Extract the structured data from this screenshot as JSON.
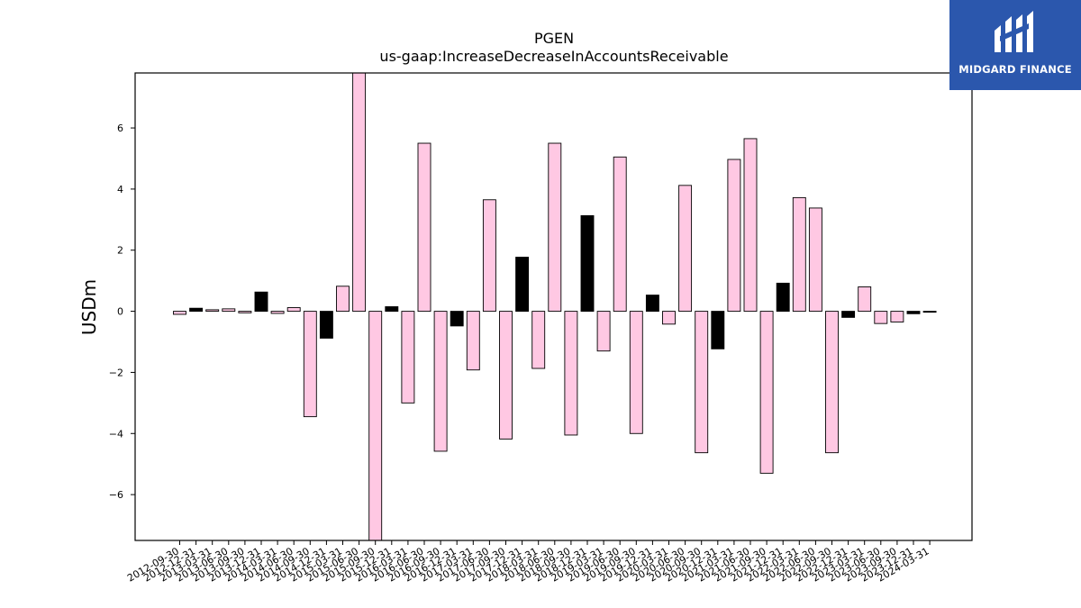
{
  "logo": {
    "brand": "MIDGARD FINANCE",
    "icon": "midgard-logo-icon",
    "background": "#2b57ad"
  },
  "chart_data": {
    "type": "bar",
    "title": "PGEN",
    "subtitle": "us-gaap:IncreaseDecreaseInAccountsReceivable",
    "ylabel": "USDm",
    "xlabel": "",
    "ylim": [
      -7.5,
      7.8
    ],
    "yticks": [
      -6,
      -4,
      -2,
      0,
      2,
      4,
      6
    ],
    "ytick_labels": [
      "−6",
      "−4",
      "−2",
      "0",
      "2",
      "4",
      "6"
    ],
    "grid": false,
    "colors": {
      "pink": "#ffc8e3",
      "black": "#000000",
      "edge": "#000000"
    },
    "categories": [
      "2012-09-30",
      "2012-12-31",
      "2013-03-31",
      "2013-06-30",
      "2013-09-30",
      "2013-12-31",
      "2014-03-31",
      "2014-06-30",
      "2014-09-30",
      "2014-12-31",
      "2015-03-31",
      "2015-06-30",
      "2015-09-30",
      "2015-12-31",
      "2016-03-31",
      "2016-06-30",
      "2016-09-30",
      "2016-12-31",
      "2017-03-31",
      "2017-06-30",
      "2017-09-30",
      "2017-12-31",
      "2018-03-31",
      "2018-06-30",
      "2018-09-30",
      "2018-12-31",
      "2019-03-31",
      "2019-06-30",
      "2019-09-30",
      "2019-12-31",
      "2020-03-31",
      "2020-06-30",
      "2020-09-30",
      "2020-12-31",
      "2021-03-31",
      "2021-06-30",
      "2021-09-30",
      "2021-12-31",
      "2022-03-31",
      "2022-06-30",
      "2022-09-30",
      "2022-12-31",
      "2023-03-31",
      "2023-06-30",
      "2023-09-30",
      "2023-12-31",
      "2024-03-31"
    ],
    "values": [
      -0.1,
      0.1,
      0.05,
      0.08,
      -0.05,
      0.63,
      -0.07,
      0.12,
      -3.45,
      -0.88,
      0.82,
      7.8,
      -7.5,
      0.15,
      -3.0,
      5.5,
      -4.58,
      -0.48,
      -1.92,
      3.65,
      -4.18,
      1.77,
      -1.87,
      5.5,
      -4.05,
      3.13,
      -1.3,
      5.05,
      -4.0,
      0.53,
      -0.42,
      4.12,
      -4.63,
      -1.23,
      4.97,
      5.65,
      -5.3,
      0.92,
      3.72,
      3.38,
      -4.63,
      -0.2,
      0.8,
      -0.4,
      -0.35,
      -0.08,
      -0.03
    ],
    "bar_colors": [
      "pink",
      "black",
      "pink",
      "pink",
      "pink",
      "black",
      "pink",
      "pink",
      "pink",
      "black",
      "pink",
      "pink",
      "pink",
      "black",
      "pink",
      "pink",
      "pink",
      "black",
      "pink",
      "pink",
      "pink",
      "black",
      "pink",
      "pink",
      "pink",
      "black",
      "pink",
      "pink",
      "pink",
      "black",
      "pink",
      "pink",
      "pink",
      "black",
      "pink",
      "pink",
      "pink",
      "black",
      "pink",
      "pink",
      "pink",
      "black",
      "pink",
      "pink",
      "pink",
      "black",
      "black"
    ]
  }
}
